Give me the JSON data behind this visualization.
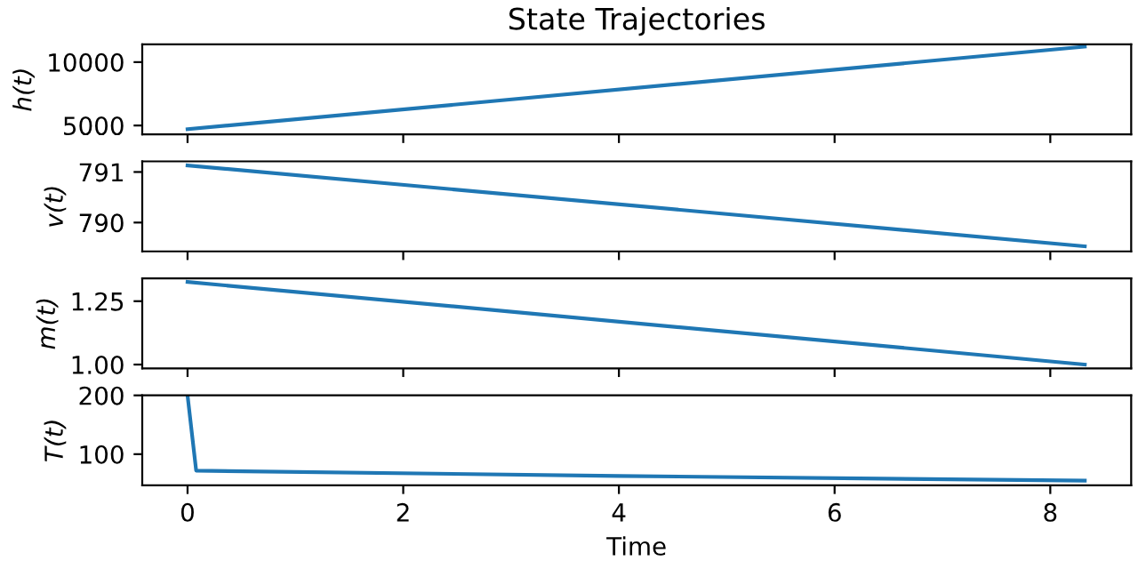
{
  "chart_data": [
    {
      "type": "line",
      "title": "State Trajectories",
      "ylabel": "h(t)",
      "xlim": [
        -0.42,
        8.75
      ],
      "xticks": [
        0,
        2,
        4,
        6,
        8
      ],
      "ylim": [
        4300,
        11400
      ],
      "yticks": [
        5000,
        10000
      ],
      "tick_labels": "y",
      "grid": false,
      "legend": false,
      "series": [
        {
          "color": "#1f77b4",
          "x": [
            0,
            8.32
          ],
          "values": [
            4710,
            11220
          ]
        }
      ]
    },
    {
      "type": "line",
      "ylabel": "v(t)",
      "xlim": [
        -0.42,
        8.75
      ],
      "xticks": [
        0,
        2,
        4,
        6,
        8
      ],
      "ylim": [
        789.43,
        791.21
      ],
      "yticks": [
        790,
        791
      ],
      "tick_labels": "y",
      "grid": false,
      "legend": false,
      "series": [
        {
          "color": "#1f77b4",
          "x": [
            0,
            8.32
          ],
          "values": [
            791.13,
            789.53
          ]
        }
      ]
    },
    {
      "type": "line",
      "ylabel": "m(t)",
      "xlim": [
        -0.42,
        8.75
      ],
      "xticks": [
        0,
        2,
        4,
        6,
        8
      ],
      "ylim": [
        0.985,
        1.34
      ],
      "yticks": [
        {
          "value": 1.0,
          "label": "1.00"
        },
        {
          "value": 1.25,
          "label": "1.25"
        }
      ],
      "tick_labels": "y",
      "grid": false,
      "legend": false,
      "series": [
        {
          "color": "#1f77b4",
          "x": [
            0,
            8.32
          ],
          "values": [
            1.326,
            1.0
          ]
        }
      ]
    },
    {
      "type": "line",
      "ylabel": "T(t)",
      "xlabel": "Time",
      "xlim": [
        -0.42,
        8.75
      ],
      "xticks": [
        0,
        2,
        4,
        6,
        8
      ],
      "ylim": [
        47,
        200
      ],
      "yticks": [
        100,
        200
      ],
      "grid": false,
      "legend": false,
      "series": [
        {
          "color": "#1f77b4",
          "x": [
            0,
            0.08,
            4,
            8.32
          ],
          "values": [
            200,
            72,
            63,
            55
          ]
        }
      ]
    }
  ]
}
